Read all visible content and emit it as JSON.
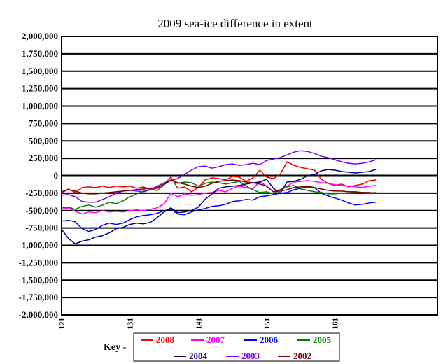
{
  "chart_data": {
    "type": "line",
    "title": "2009 sea-ice difference in extent",
    "xlabel": "",
    "ylabel": "",
    "ylim": [
      -2000000,
      2000000
    ],
    "xlim": [
      121,
      176
    ],
    "xticks": [
      "121",
      "131",
      "141",
      "151",
      "161"
    ],
    "yticks": [
      "2,000,000",
      "1,750,000",
      "1,500,000",
      "1,250,000",
      "1,000,000",
      "750,000",
      "500,000",
      "250,000",
      "0",
      "-250,000",
      "-500,000",
      "-750,000",
      "-1,000,000",
      "-1,250,000",
      "-1,500,000",
      "-1,750,000",
      "-2,000,000"
    ],
    "grid": true,
    "legend_position": "bottom",
    "key_label": "Key -",
    "x": [
      121,
      122,
      123,
      124,
      125,
      126,
      127,
      128,
      129,
      130,
      131,
      132,
      133,
      134,
      135,
      136,
      137,
      138,
      139,
      140,
      141,
      142,
      143,
      144,
      145,
      146,
      147,
      148,
      149,
      150,
      151,
      152,
      153,
      154,
      155,
      156,
      157,
      158,
      159,
      160,
      161,
      162,
      163,
      164,
      165,
      166,
      167
    ],
    "series": [
      {
        "name": "2008",
        "color": "#ff0000",
        "values": [
          -250000,
          -190000,
          -240000,
          -170000,
          -160000,
          -170000,
          -150000,
          -170000,
          -150000,
          -160000,
          -150000,
          -180000,
          -160000,
          -200000,
          -180000,
          -120000,
          -20000,
          -180000,
          -160000,
          -230000,
          -170000,
          -60000,
          -30000,
          -40000,
          -60000,
          -10000,
          -20000,
          -80000,
          -30000,
          80000,
          -20000,
          -40000,
          20000,
          200000,
          150000,
          120000,
          100000,
          80000,
          -50000,
          -110000,
          -140000,
          -120000,
          -160000,
          -140000,
          -120000,
          -70000,
          -60000
        ]
      },
      {
        "name": "2007",
        "color": "#ff00ff",
        "values": [
          -480000,
          -460000,
          -510000,
          -550000,
          -520000,
          -530000,
          -500000,
          -520000,
          -510000,
          -520000,
          -500000,
          -490000,
          -500000,
          -480000,
          -460000,
          -400000,
          -250000,
          -300000,
          -260000,
          -280000,
          -270000,
          -250000,
          -240000,
          -210000,
          -230000,
          -180000,
          -150000,
          -170000,
          -190000,
          -80000,
          -150000,
          -230000,
          -200000,
          -150000,
          -90000,
          -80000,
          -70000,
          -80000,
          -100000,
          -110000,
          -130000,
          -140000,
          -150000,
          -160000,
          -170000,
          -150000,
          -140000
        ]
      },
      {
        "name": "2006",
        "color": "#0000ff",
        "values": [
          -650000,
          -640000,
          -660000,
          -760000,
          -800000,
          -770000,
          -710000,
          -680000,
          -700000,
          -680000,
          -630000,
          -590000,
          -570000,
          -560000,
          -540000,
          -500000,
          -480000,
          -550000,
          -560000,
          -520000,
          -490000,
          -470000,
          -440000,
          -430000,
          -410000,
          -370000,
          -360000,
          -340000,
          -350000,
          -300000,
          -290000,
          -270000,
          -250000,
          -240000,
          -200000,
          -180000,
          -160000,
          -170000,
          -250000,
          -290000,
          -320000,
          -350000,
          -390000,
          -420000,
          -410000,
          -390000,
          -380000
        ]
      },
      {
        "name": "2005",
        "color": "#008000",
        "values": [
          -460000,
          -450000,
          -480000,
          -440000,
          -420000,
          -450000,
          -420000,
          -380000,
          -400000,
          -360000,
          -300000,
          -260000,
          -220000,
          -200000,
          -210000,
          -130000,
          -60000,
          -110000,
          -90000,
          -100000,
          -150000,
          -110000,
          -90000,
          -100000,
          -120000,
          -100000,
          -80000,
          -150000,
          -200000,
          -240000,
          -230000,
          -260000,
          -200000,
          -160000,
          -140000,
          -190000,
          -210000,
          -230000,
          -240000,
          -260000,
          -260000,
          -250000,
          -250000,
          -240000,
          -240000,
          -250000,
          -240000
        ]
      },
      {
        "name": "2004",
        "color": "#000080",
        "values": [
          -770000,
          -900000,
          -980000,
          -940000,
          -920000,
          -880000,
          -860000,
          -820000,
          -760000,
          -740000,
          -700000,
          -680000,
          -690000,
          -670000,
          -600000,
          -520000,
          -460000,
          -530000,
          -520000,
          -500000,
          -450000,
          -340000,
          -260000,
          -180000,
          -160000,
          -150000,
          -140000,
          -120000,
          -100000,
          -90000,
          -50000,
          -180000,
          -250000,
          -90000,
          -80000,
          -50000,
          0,
          20000,
          70000,
          90000,
          80000,
          60000,
          50000,
          40000,
          50000,
          60000,
          90000
        ]
      },
      {
        "name": "2003",
        "color": "#8000ff",
        "values": [
          -280000,
          -270000,
          -300000,
          -370000,
          -380000,
          -380000,
          -340000,
          -300000,
          -250000,
          -220000,
          -210000,
          -220000,
          -230000,
          -200000,
          -150000,
          -100000,
          -70000,
          -40000,
          20000,
          80000,
          130000,
          140000,
          110000,
          130000,
          160000,
          170000,
          150000,
          160000,
          180000,
          160000,
          220000,
          240000,
          260000,
          300000,
          340000,
          360000,
          350000,
          320000,
          280000,
          260000,
          230000,
          200000,
          180000,
          170000,
          180000,
          200000,
          230000
        ]
      },
      {
        "name": "2002",
        "color": "#800000",
        "values": [
          -230000,
          -200000,
          -220000,
          -250000,
          -260000,
          -260000,
          -250000,
          -240000,
          -230000,
          -220000,
          -210000,
          -200000,
          -190000,
          -180000,
          -170000,
          -120000,
          -60000,
          -100000,
          -120000,
          -150000,
          -170000,
          -150000,
          -110000,
          -80000,
          -70000,
          -60000,
          -70000,
          -90000,
          -100000,
          -120000,
          -150000,
          -230000,
          -220000,
          -200000,
          -170000,
          -160000,
          -150000,
          -170000,
          -190000,
          -210000,
          -220000,
          -220000,
          -230000,
          -230000,
          -240000,
          -240000,
          -250000
        ]
      }
    ]
  }
}
